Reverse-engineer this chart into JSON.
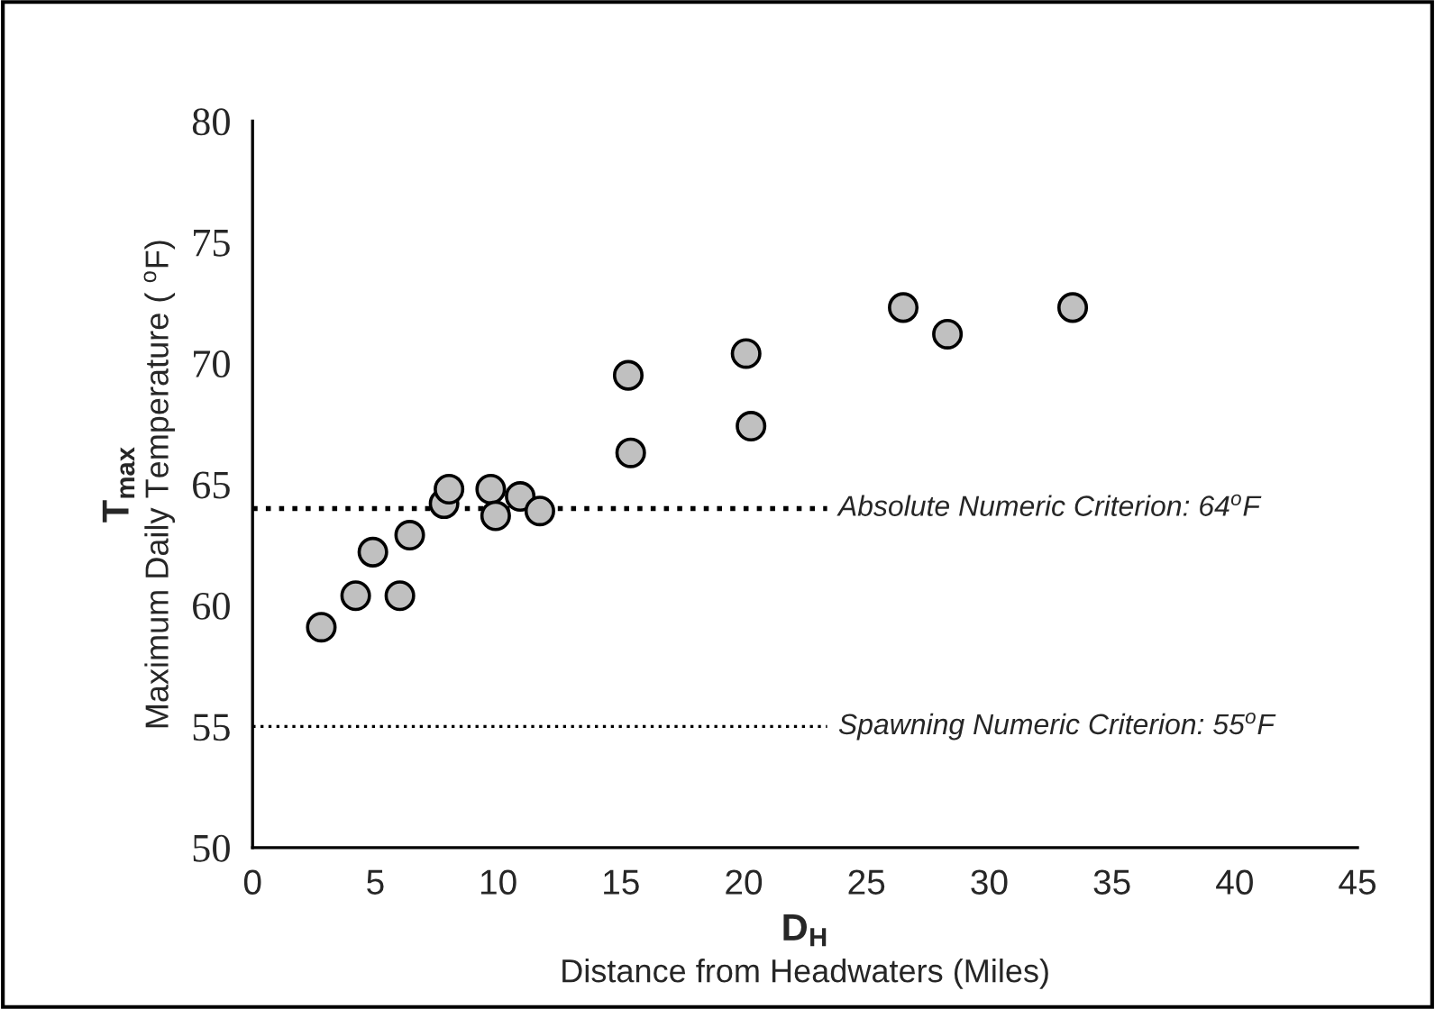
{
  "chart_data": {
    "type": "scatter",
    "xlabel": "D$_{H}$\nDistance from Headwaters (Miles)",
    "ylabel": "T$_{max}$\nMaximum Daily Temperature ( $^{o}$F)",
    "x": [
      2.8,
      4.2,
      4.9,
      6.0,
      6.4,
      7.8,
      8.0,
      9.7,
      9.9,
      10.9,
      11.7,
      15.3,
      15.4,
      20.1,
      20.3,
      26.5,
      28.3,
      33.4
    ],
    "series": [
      {
        "color": "#c0c0c0",
        "values": [
          59.1,
          60.4,
          62.2,
          60.4,
          62.9,
          64.2,
          64.8,
          64.8,
          63.7,
          64.5,
          63.9,
          69.5,
          66.3,
          70.4,
          67.4,
          72.3,
          71.2,
          72.3
        ]
      }
    ],
    "xlim": [
      0,
      45
    ],
    "xticks": [
      0,
      5,
      10,
      15,
      20,
      25,
      30,
      35,
      40,
      45
    ],
    "ylim": [
      50,
      80
    ],
    "yticks": [
      50,
      55,
      60,
      65,
      70,
      75,
      80
    ],
    "ref_lines": [
      {
        "axis": "y",
        "value": 64,
        "label": "Absolute Numeric Criterion: 64$^{o}$F",
        "color": "#000000",
        "line_style": "dotted"
      },
      {
        "axis": "y",
        "value": 55,
        "label": "Spawning Numeric Criterion: 55$^{o}$F",
        "color": "#000000",
        "line_style": "dotted"
      }
    ],
    "marker": "circle",
    "grid": false,
    "legend": false
  }
}
